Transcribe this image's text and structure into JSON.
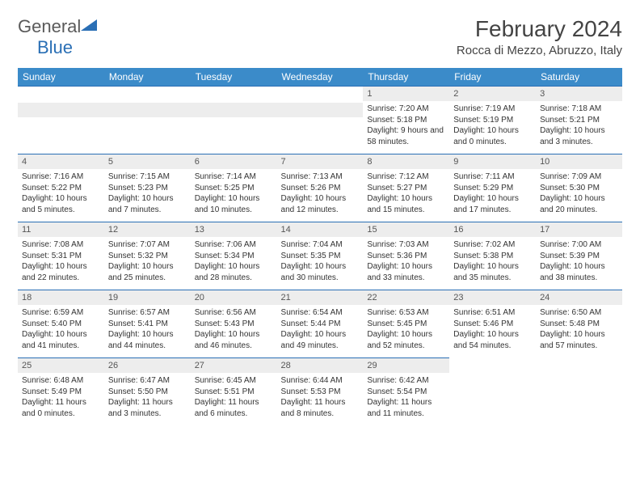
{
  "logo": {
    "text1": "General",
    "text2": "Blue"
  },
  "title": "February 2024",
  "location": "Rocca di Mezzo, Abruzzo, Italy",
  "weekdays": [
    "Sunday",
    "Monday",
    "Tuesday",
    "Wednesday",
    "Thursday",
    "Friday",
    "Saturday"
  ],
  "colors": {
    "header_bg": "#3b8bc9",
    "rule": "#2a6fb5",
    "daynum_bg": "#ededed",
    "logo_gray": "#5a5a5a",
    "logo_blue": "#2a6fb5"
  },
  "first_weekday_index": 4,
  "days": [
    {
      "n": 1,
      "sunrise": "7:20 AM",
      "sunset": "5:18 PM",
      "daylight": "9 hours and 58 minutes."
    },
    {
      "n": 2,
      "sunrise": "7:19 AM",
      "sunset": "5:19 PM",
      "daylight": "10 hours and 0 minutes."
    },
    {
      "n": 3,
      "sunrise": "7:18 AM",
      "sunset": "5:21 PM",
      "daylight": "10 hours and 3 minutes."
    },
    {
      "n": 4,
      "sunrise": "7:16 AM",
      "sunset": "5:22 PM",
      "daylight": "10 hours and 5 minutes."
    },
    {
      "n": 5,
      "sunrise": "7:15 AM",
      "sunset": "5:23 PM",
      "daylight": "10 hours and 7 minutes."
    },
    {
      "n": 6,
      "sunrise": "7:14 AM",
      "sunset": "5:25 PM",
      "daylight": "10 hours and 10 minutes."
    },
    {
      "n": 7,
      "sunrise": "7:13 AM",
      "sunset": "5:26 PM",
      "daylight": "10 hours and 12 minutes."
    },
    {
      "n": 8,
      "sunrise": "7:12 AM",
      "sunset": "5:27 PM",
      "daylight": "10 hours and 15 minutes."
    },
    {
      "n": 9,
      "sunrise": "7:11 AM",
      "sunset": "5:29 PM",
      "daylight": "10 hours and 17 minutes."
    },
    {
      "n": 10,
      "sunrise": "7:09 AM",
      "sunset": "5:30 PM",
      "daylight": "10 hours and 20 minutes."
    },
    {
      "n": 11,
      "sunrise": "7:08 AM",
      "sunset": "5:31 PM",
      "daylight": "10 hours and 22 minutes."
    },
    {
      "n": 12,
      "sunrise": "7:07 AM",
      "sunset": "5:32 PM",
      "daylight": "10 hours and 25 minutes."
    },
    {
      "n": 13,
      "sunrise": "7:06 AM",
      "sunset": "5:34 PM",
      "daylight": "10 hours and 28 minutes."
    },
    {
      "n": 14,
      "sunrise": "7:04 AM",
      "sunset": "5:35 PM",
      "daylight": "10 hours and 30 minutes."
    },
    {
      "n": 15,
      "sunrise": "7:03 AM",
      "sunset": "5:36 PM",
      "daylight": "10 hours and 33 minutes."
    },
    {
      "n": 16,
      "sunrise": "7:02 AM",
      "sunset": "5:38 PM",
      "daylight": "10 hours and 35 minutes."
    },
    {
      "n": 17,
      "sunrise": "7:00 AM",
      "sunset": "5:39 PM",
      "daylight": "10 hours and 38 minutes."
    },
    {
      "n": 18,
      "sunrise": "6:59 AM",
      "sunset": "5:40 PM",
      "daylight": "10 hours and 41 minutes."
    },
    {
      "n": 19,
      "sunrise": "6:57 AM",
      "sunset": "5:41 PM",
      "daylight": "10 hours and 44 minutes."
    },
    {
      "n": 20,
      "sunrise": "6:56 AM",
      "sunset": "5:43 PM",
      "daylight": "10 hours and 46 minutes."
    },
    {
      "n": 21,
      "sunrise": "6:54 AM",
      "sunset": "5:44 PM",
      "daylight": "10 hours and 49 minutes."
    },
    {
      "n": 22,
      "sunrise": "6:53 AM",
      "sunset": "5:45 PM",
      "daylight": "10 hours and 52 minutes."
    },
    {
      "n": 23,
      "sunrise": "6:51 AM",
      "sunset": "5:46 PM",
      "daylight": "10 hours and 54 minutes."
    },
    {
      "n": 24,
      "sunrise": "6:50 AM",
      "sunset": "5:48 PM",
      "daylight": "10 hours and 57 minutes."
    },
    {
      "n": 25,
      "sunrise": "6:48 AM",
      "sunset": "5:49 PM",
      "daylight": "11 hours and 0 minutes."
    },
    {
      "n": 26,
      "sunrise": "6:47 AM",
      "sunset": "5:50 PM",
      "daylight": "11 hours and 3 minutes."
    },
    {
      "n": 27,
      "sunrise": "6:45 AM",
      "sunset": "5:51 PM",
      "daylight": "11 hours and 6 minutes."
    },
    {
      "n": 28,
      "sunrise": "6:44 AM",
      "sunset": "5:53 PM",
      "daylight": "11 hours and 8 minutes."
    },
    {
      "n": 29,
      "sunrise": "6:42 AM",
      "sunset": "5:54 PM",
      "daylight": "11 hours and 11 minutes."
    }
  ],
  "labels": {
    "sunrise": "Sunrise: ",
    "sunset": "Sunset: ",
    "daylight": "Daylight: "
  }
}
